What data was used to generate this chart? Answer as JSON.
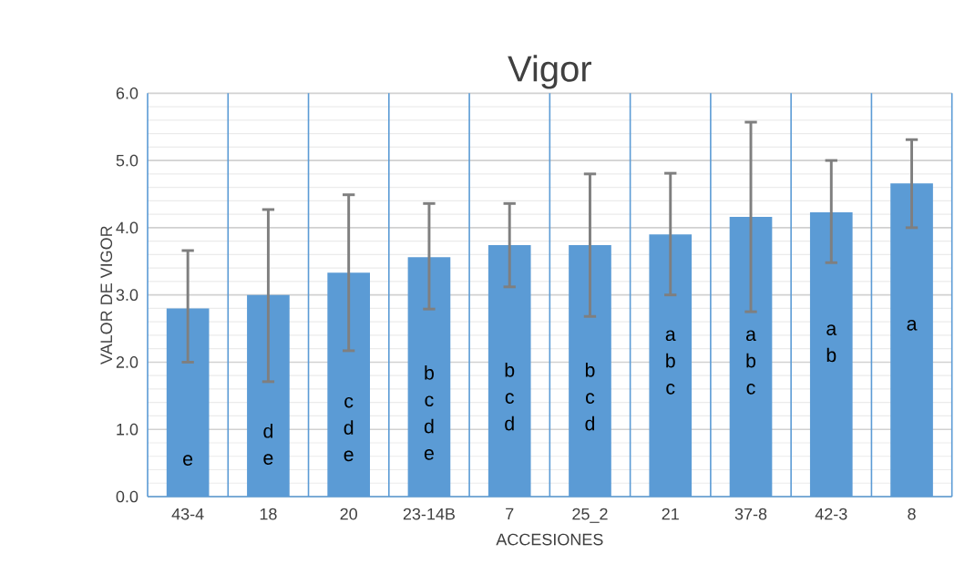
{
  "chart_data": {
    "type": "bar",
    "title": "Vigor",
    "xlabel": "ACCESIONES",
    "ylabel": "VALOR DE VIGOR",
    "categories": [
      "43-4",
      "18",
      "20",
      "23-14B",
      "7",
      "25_2",
      "21",
      "37-8",
      "42-3",
      "8"
    ],
    "values": [
      2.8,
      3.0,
      3.33,
      3.56,
      3.74,
      3.74,
      3.9,
      4.16,
      4.23,
      4.66
    ],
    "errors": [
      [
        2.0,
        3.66
      ],
      [
        1.71,
        4.27
      ],
      [
        2.17,
        4.49
      ],
      [
        2.79,
        4.36
      ],
      [
        3.12,
        4.36
      ],
      [
        2.68,
        4.8
      ],
      [
        3.0,
        4.81
      ],
      [
        2.75,
        5.57
      ],
      [
        3.48,
        5.0
      ],
      [
        4.0,
        5.31
      ]
    ],
    "color": "#5b9bd5",
    "ylim": [
      0,
      6
    ],
    "yticks": [
      {
        "value": 0,
        "label": "0.0"
      },
      {
        "value": 1,
        "label": "1.0"
      },
      {
        "value": 2,
        "label": "2.0"
      },
      {
        "value": 3,
        "label": "3.0"
      },
      {
        "value": 4,
        "label": "4.0"
      },
      {
        "value": 5,
        "label": "5.0"
      },
      {
        "value": 6,
        "label": "6.0"
      }
    ],
    "grid": true,
    "annotations": [
      "e",
      "d e",
      "c d e",
      "b c d e",
      "b c d",
      "b c d",
      "a b c",
      "a b c",
      "a b",
      "a"
    ]
  }
}
